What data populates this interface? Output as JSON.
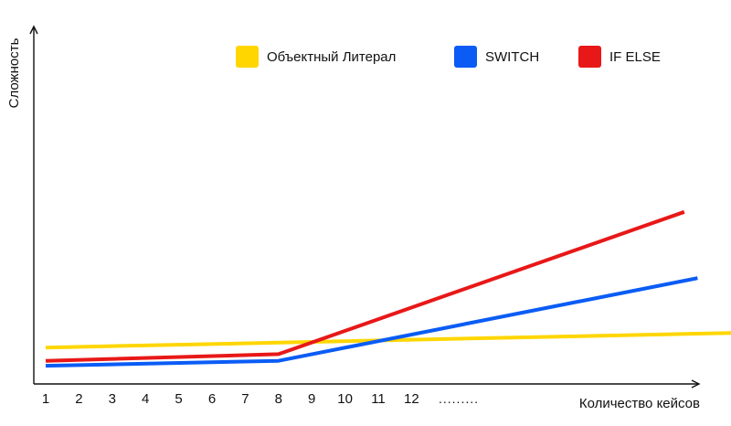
{
  "chart_data": {
    "type": "line",
    "xlabel": "Количество кейсов",
    "ylabel": "Сложность",
    "x_tick_labels": [
      "1",
      "2",
      "3",
      "4",
      "5",
      "6",
      "7",
      "8",
      "9",
      "10",
      "11",
      "12"
    ],
    "x_ellipsis": ".........",
    "grid": false,
    "legend": "top",
    "series": [
      {
        "name": "Объектный Литерал",
        "color": "#FFD600",
        "x": [
          1,
          22
        ],
        "y": [
          1.1,
          1.55
        ]
      },
      {
        "name": "SWITCH",
        "color": "#0A5CF5",
        "x": [
          1,
          8,
          20.6
        ],
        "y": [
          0.55,
          0.7,
          3.2
        ]
      },
      {
        "name": "IF ELSE",
        "color": "#E81818",
        "x": [
          1,
          8,
          20.2
        ],
        "y": [
          0.7,
          0.9,
          5.2
        ]
      }
    ]
  }
}
